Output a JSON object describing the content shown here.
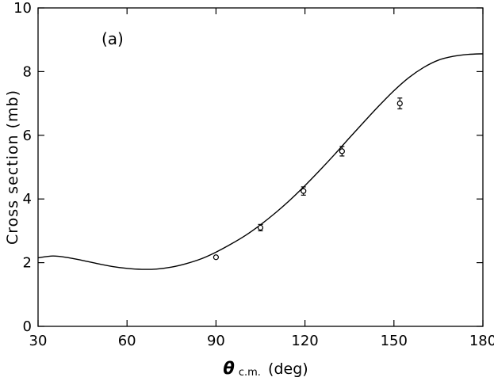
{
  "chart_data": {
    "type": "scatter",
    "panel_label": "(a)",
    "ylabel": "Cross section (mb)",
    "xlabel_symbol": "θ",
    "xlabel_subscript": "c.m.",
    "xlabel_unit": "(deg)",
    "xlim": [
      30,
      180
    ],
    "ylim": [
      0,
      10
    ],
    "x_ticks": [
      30,
      60,
      90,
      120,
      150,
      180
    ],
    "y_ticks": [
      0,
      2,
      4,
      6,
      8,
      10
    ],
    "grid": false,
    "series": [
      {
        "kind": "points_with_error_bars",
        "marker": "open-circle",
        "points": [
          {
            "x": 90,
            "y": 2.17,
            "err": 0.05
          },
          {
            "x": 105,
            "y": 3.1,
            "err": 0.1
          },
          {
            "x": 119.5,
            "y": 4.25,
            "err": 0.13
          },
          {
            "x": 132.5,
            "y": 5.5,
            "err": 0.15
          },
          {
            "x": 152,
            "y": 7.0,
            "err": 0.17
          }
        ]
      },
      {
        "kind": "curve",
        "line": "solid",
        "x": [
          30,
          35,
          40,
          45,
          50,
          55,
          60,
          65,
          70,
          75,
          80,
          85,
          90,
          95,
          100,
          105,
          110,
          115,
          120,
          125,
          130,
          135,
          140,
          145,
          150,
          155,
          160,
          165,
          170,
          175,
          180
        ],
        "y": [
          2.15,
          2.21,
          2.16,
          2.07,
          1.97,
          1.88,
          1.82,
          1.79,
          1.8,
          1.86,
          1.97,
          2.12,
          2.33,
          2.58,
          2.86,
          3.19,
          3.56,
          3.97,
          4.42,
          4.9,
          5.4,
          5.92,
          6.43,
          6.93,
          7.4,
          7.81,
          8.13,
          8.36,
          8.48,
          8.54,
          8.56
        ]
      }
    ]
  }
}
